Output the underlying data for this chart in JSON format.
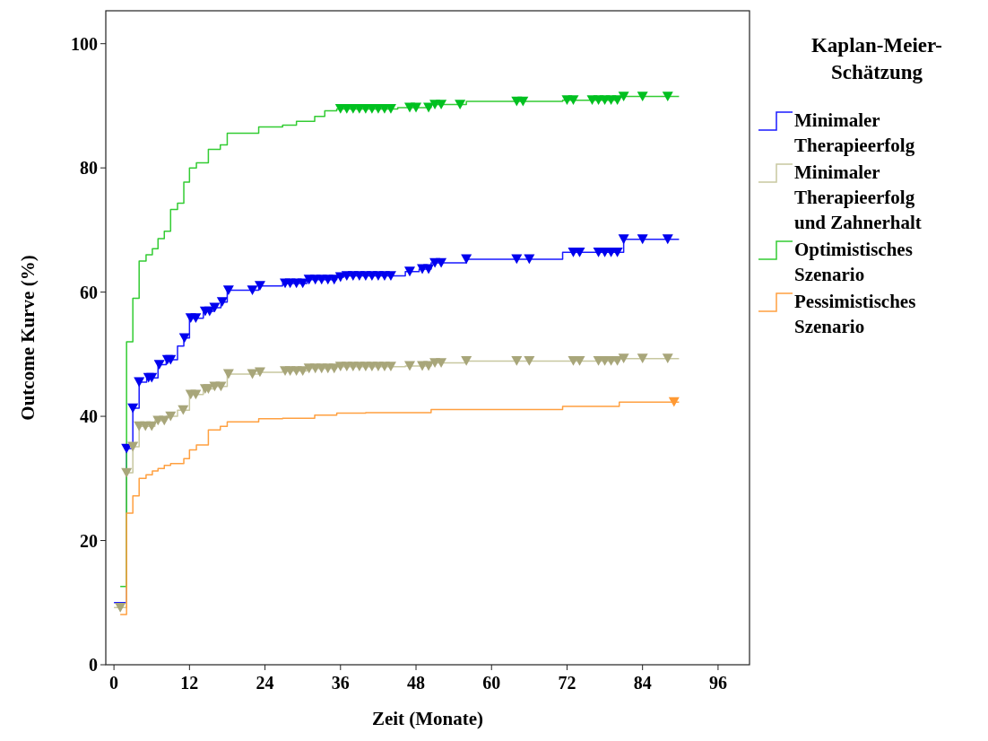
{
  "chart_data": {
    "type": "step",
    "xlabel": "Zeit (Monate)",
    "ylabel": "Outcome Kurve (%)",
    "legend_title": "Kaplan-Meier-Schätzung",
    "legend": "right",
    "grid": false,
    "xlim": [
      -1.3,
      101
    ],
    "xticks": [
      0,
      12,
      24,
      36,
      48,
      60,
      72,
      84,
      96
    ],
    "ylim": [
      0,
      105.3
    ],
    "yticks": [
      0,
      20,
      40,
      60,
      80,
      100
    ],
    "series": [
      {
        "name": "Minimaler Therapieerfolg",
        "color": "#1a1aff",
        "x": [
          0,
          2,
          3,
          4,
          5.2,
          7,
          8.3,
          10.1,
          11.1,
          12,
          14.2,
          15.9,
          17,
          18,
          23,
          26.8,
          30.7,
          35.4,
          36.5,
          46.3,
          48.5,
          50.4,
          56,
          71.3,
          81,
          89.8
        ],
        "values": [
          10,
          34.8,
          41.3,
          45.5,
          46.2,
          48.3,
          49.1,
          51.3,
          52.6,
          55.8,
          56.9,
          57.5,
          58.4,
          60.3,
          61,
          61.4,
          62,
          62.4,
          62.6,
          63.3,
          63.7,
          64.7,
          65.3,
          66.4,
          68.5,
          68.5
        ]
      },
      {
        "name": "Minimaler Therapieerfolg und Zahnerhalt",
        "color": "#c8c8a0",
        "x": [
          0,
          2,
          3,
          4,
          6.5,
          8.3,
          10.1,
          12,
          14.2,
          15.9,
          18,
          23,
          26.8,
          30.7,
          35.4,
          46.3,
          50.4,
          56,
          80.3,
          89.8
        ],
        "values": [
          9.2,
          30.9,
          35.1,
          38.4,
          39.3,
          40,
          41,
          43.5,
          44.4,
          44.8,
          46.8,
          47.1,
          47.3,
          47.7,
          48,
          48.1,
          48.6,
          48.9,
          49.3,
          49.3
        ]
      },
      {
        "name": "Optimistisches Szenario",
        "color": "#33cc33",
        "x": [
          1,
          2,
          3,
          4,
          5.1,
          6.1,
          7,
          8,
          9,
          10.1,
          11.1,
          12,
          13.1,
          15,
          16.9,
          18,
          23,
          26.8,
          29,
          31.9,
          33.5,
          35.4,
          45.1,
          50.4,
          56,
          71.3,
          80.3,
          89.8
        ],
        "values": [
          12.6,
          52,
          59,
          65,
          66,
          67,
          68.6,
          69.8,
          73.3,
          74.3,
          77.7,
          80,
          80.8,
          83,
          83.7,
          85.6,
          86.6,
          86.9,
          87.5,
          88.3,
          89.2,
          89.5,
          89.7,
          90.2,
          90.7,
          90.9,
          91.5,
          91.5
        ]
      },
      {
        "name": "Pessimistisches Szenario",
        "color": "#ffa040",
        "x": [
          1,
          2,
          3,
          4,
          5.1,
          6.1,
          7,
          8,
          9,
          11.1,
          12,
          13.1,
          15,
          16.9,
          18,
          23,
          26.8,
          31.9,
          35.4,
          40,
          50.4,
          71.3,
          80.3,
          89.8
        ],
        "values": [
          8.1,
          24.4,
          27.2,
          30,
          30.6,
          31.2,
          31.6,
          32.1,
          32.4,
          33.2,
          34.6,
          35.4,
          37.8,
          38.4,
          39.1,
          39.6,
          39.7,
          40.2,
          40.5,
          40.6,
          41.1,
          41.6,
          42.3,
          42.3
        ]
      },
      {
        "type": "scatter",
        "marker": "triangle",
        "color": "#0000ee",
        "x": [
          2,
          3,
          4,
          5.5,
          6,
          7.2,
          8.5,
          9,
          11.2,
          12.2,
          13,
          14.5,
          15.2,
          16,
          17.2,
          18.2,
          22,
          23.2,
          27.2,
          28,
          29,
          30,
          31,
          32,
          33,
          34,
          35,
          36,
          37,
          38,
          39,
          40,
          41,
          42,
          43,
          44,
          47,
          49,
          50,
          51,
          52,
          56,
          64,
          66,
          73,
          74,
          77,
          78,
          79,
          80,
          81,
          84,
          88
        ],
        "values": [
          34.8,
          41.3,
          45.5,
          46.2,
          46.2,
          48.3,
          49.1,
          49.1,
          52.6,
          55.8,
          55.8,
          56.9,
          56.9,
          57.5,
          58.4,
          60.3,
          60.3,
          61,
          61.4,
          61.4,
          61.4,
          61.4,
          62,
          62,
          62,
          62,
          62,
          62.4,
          62.6,
          62.6,
          62.6,
          62.6,
          62.6,
          62.6,
          62.6,
          62.6,
          63.3,
          63.7,
          63.7,
          64.7,
          64.7,
          65.3,
          65.3,
          65.3,
          66.4,
          66.4,
          66.4,
          66.4,
          66.4,
          66.4,
          68.5,
          68.5,
          68.5
        ]
      },
      {
        "type": "scatter",
        "marker": "triangle",
        "color": "#a8a67a",
        "x": [
          1,
          2,
          3,
          4,
          5,
          6,
          7,
          8,
          9,
          11,
          12.2,
          13,
          14.5,
          15,
          16,
          17,
          18.2,
          22,
          23.2,
          27.2,
          28,
          29,
          30,
          31,
          32,
          33,
          34,
          35,
          36,
          37,
          38,
          39,
          40,
          41,
          42,
          43,
          44,
          47,
          49,
          50,
          51,
          52,
          56,
          64,
          66,
          73,
          74,
          77,
          78,
          79,
          80,
          81,
          84,
          88
        ],
        "values": [
          9.2,
          30.9,
          35.1,
          38.4,
          38.4,
          38.4,
          39.3,
          39.3,
          40,
          41,
          43.5,
          43.5,
          44.4,
          44.4,
          44.8,
          44.8,
          46.8,
          46.8,
          47.1,
          47.3,
          47.3,
          47.3,
          47.3,
          47.7,
          47.7,
          47.7,
          47.7,
          47.7,
          48,
          48,
          48,
          48,
          48,
          48,
          48,
          48,
          48,
          48.1,
          48.1,
          48.1,
          48.6,
          48.6,
          48.9,
          48.9,
          48.9,
          48.9,
          48.9,
          48.9,
          48.9,
          48.9,
          48.9,
          49.3,
          49.3,
          49.3
        ]
      },
      {
        "type": "scatter",
        "marker": "triangle",
        "color": "#00c020",
        "x": [
          36,
          37,
          38,
          39,
          40,
          41,
          42,
          43,
          44,
          47,
          48,
          50,
          51,
          52,
          55,
          64,
          65,
          72,
          73,
          76,
          77,
          78,
          79,
          80,
          81,
          84,
          88
        ],
        "values": [
          89.5,
          89.5,
          89.5,
          89.5,
          89.5,
          89.5,
          89.5,
          89.5,
          89.5,
          89.7,
          89.7,
          89.7,
          90.2,
          90.2,
          90.2,
          90.7,
          90.7,
          90.9,
          90.9,
          90.9,
          90.9,
          90.9,
          90.9,
          90.9,
          91.5,
          91.5,
          91.5
        ]
      },
      {
        "type": "scatter",
        "marker": "triangle",
        "color": "#ff9933",
        "x": [
          89
        ],
        "values": [
          42.3
        ]
      }
    ]
  }
}
